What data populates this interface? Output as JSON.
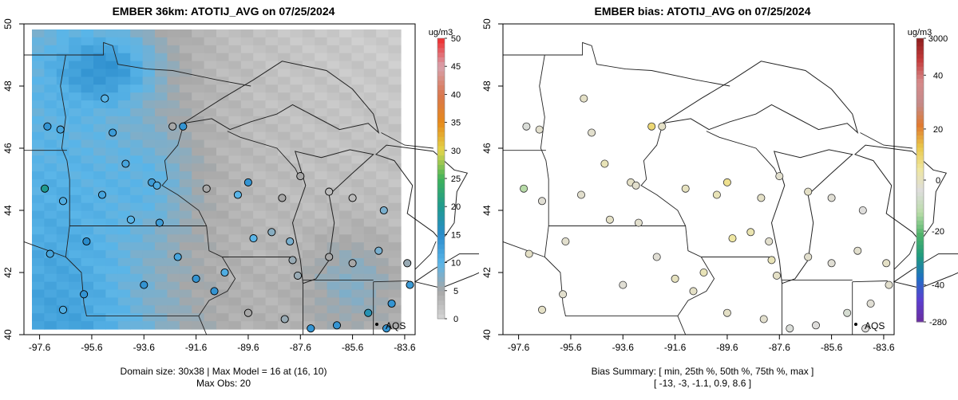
{
  "panels": [
    {
      "title": "EMBER 36km: ATOTIJ_AVG on 07/25/2024",
      "x_ticks": [
        "-97.6",
        "-95.6",
        "-93.6",
        "-91.6",
        "-89.6",
        "-87.6",
        "-85.6",
        "-83.6"
      ],
      "y_ticks": [
        "40",
        "42",
        "44",
        "46",
        "48",
        "50"
      ],
      "colorbar": {
        "unit": "ug/m3",
        "ticks": [
          "0",
          "5",
          "10",
          "15",
          "20",
          "25",
          "30",
          "35",
          "40",
          "45",
          "50"
        ],
        "colors": [
          "#d6d6d6",
          "#a7a7a7",
          "#5ab5e8",
          "#2a8ccc",
          "#1f9a8e",
          "#3fb25a",
          "#e3d54a",
          "#e68a1a",
          "#d9764f",
          "#d8a2ad",
          "#ef2a2a"
        ]
      },
      "annotation": "AQS",
      "footer_line1": "Domain size: 30x38 | Max Model = 16 at (16, 10)",
      "footer_line2": "Max Obs: 20"
    },
    {
      "title": "EMBER bias: ATOTIJ_AVG on 07/25/2024",
      "x_ticks": [
        "-97.6",
        "-95.6",
        "-93.6",
        "-91.6",
        "-89.6",
        "-87.6",
        "-85.6",
        "-83.6"
      ],
      "y_ticks": [
        "40",
        "42",
        "44",
        "46",
        "48",
        "50"
      ],
      "colorbar": {
        "unit": "ug/m3",
        "labels": [
          "3000",
          "40",
          "20",
          "0",
          "-20",
          "-40",
          "-280"
        ],
        "colors": [
          "#8c1d1d",
          "#c43b3b",
          "#d68a8a",
          "#c48a8a",
          "#e07a30",
          "#e9c84a",
          "#efe6a0",
          "#dddddd",
          "#b9dca8",
          "#4fb36a",
          "#1f9a7e",
          "#1f6fc4",
          "#5b3fd0",
          "#6a2d9e"
        ]
      },
      "annotation": "AQS",
      "footer_line1": "Bias Summary: [ min, 25th %, 50th %, 75th %, max ]",
      "footer_line2": "[ -13,   -3,   -1.1,   0.9,   8.6 ]"
    }
  ],
  "chart_data": [
    {
      "type": "heatmap",
      "title": "EMBER 36km: ATOTIJ_AVG on 07/25/2024",
      "xlabel": "",
      "ylabel": "",
      "xlim": [
        -98.2,
        -83.2
      ],
      "ylim": [
        40.0,
        50.0
      ],
      "colorbar_range": [
        0,
        50
      ],
      "model_max": 16,
      "obs_max": 20,
      "domain_size": "30x38",
      "sites": [
        {
          "lon": -97.3,
          "lat": 46.7,
          "value": 14
        },
        {
          "lon": -96.8,
          "lat": 46.6,
          "value": 12
        },
        {
          "lon": -95.1,
          "lat": 47.6,
          "value": 10
        },
        {
          "lon": -94.8,
          "lat": 46.5,
          "value": 13
        },
        {
          "lon": -94.3,
          "lat": 45.5,
          "value": 12
        },
        {
          "lon": -93.3,
          "lat": 44.9,
          "value": 13
        },
        {
          "lon": -93.1,
          "lat": 44.8,
          "value": 11
        },
        {
          "lon": -92.5,
          "lat": 46.7,
          "value": 5
        },
        {
          "lon": -92.1,
          "lat": 46.7,
          "value": 14
        },
        {
          "lon": -97.4,
          "lat": 44.7,
          "value": 20
        },
        {
          "lon": -96.7,
          "lat": 44.3,
          "value": 11
        },
        {
          "lon": -95.2,
          "lat": 44.5,
          "value": 12
        },
        {
          "lon": -94.1,
          "lat": 43.7,
          "value": 10
        },
        {
          "lon": -93.0,
          "lat": 43.6,
          "value": 13
        },
        {
          "lon": -91.2,
          "lat": 44.7,
          "value": 5
        },
        {
          "lon": -90.0,
          "lat": 44.5,
          "value": 10
        },
        {
          "lon": -89.6,
          "lat": 44.9,
          "value": 14
        },
        {
          "lon": -88.3,
          "lat": 44.4,
          "value": 5
        },
        {
          "lon": -87.6,
          "lat": 45.1,
          "value": 5
        },
        {
          "lon": -86.5,
          "lat": 44.6,
          "value": 3
        },
        {
          "lon": -85.6,
          "lat": 44.4,
          "value": 3
        },
        {
          "lon": -84.4,
          "lat": 44.0,
          "value": 8
        },
        {
          "lon": -89.4,
          "lat": 43.1,
          "value": 10
        },
        {
          "lon": -88.0,
          "lat": 43.0,
          "value": 8
        },
        {
          "lon": -87.9,
          "lat": 42.4,
          "value": 6
        },
        {
          "lon": -87.7,
          "lat": 41.9,
          "value": 6
        },
        {
          "lon": -86.5,
          "lat": 42.5,
          "value": 5
        },
        {
          "lon": -85.6,
          "lat": 42.3,
          "value": 5
        },
        {
          "lon": -84.6,
          "lat": 42.7,
          "value": 8
        },
        {
          "lon": -83.5,
          "lat": 42.3,
          "value": 6
        },
        {
          "lon": -83.4,
          "lat": 41.6,
          "value": 13
        },
        {
          "lon": -84.1,
          "lat": 41.0,
          "value": 14
        },
        {
          "lon": -85.0,
          "lat": 40.7,
          "value": 17
        },
        {
          "lon": -86.2,
          "lat": 40.3,
          "value": 14
        },
        {
          "lon": -87.2,
          "lat": 40.2,
          "value": 14
        },
        {
          "lon": -88.2,
          "lat": 40.5,
          "value": 6
        },
        {
          "lon": -89.6,
          "lat": 40.7,
          "value": 5
        },
        {
          "lon": -90.9,
          "lat": 41.4,
          "value": 14
        },
        {
          "lon": -91.6,
          "lat": 41.8,
          "value": 14
        },
        {
          "lon": -93.6,
          "lat": 41.6,
          "value": 14
        },
        {
          "lon": -95.9,
          "lat": 41.3,
          "value": 14
        },
        {
          "lon": -96.7,
          "lat": 40.8,
          "value": 11
        },
        {
          "lon": -97.2,
          "lat": 42.6,
          "value": 12
        },
        {
          "lon": -95.8,
          "lat": 43.0,
          "value": 15
        },
        {
          "lon": -92.3,
          "lat": 42.5,
          "value": 12
        },
        {
          "lon": -90.5,
          "lat": 42.0,
          "value": 11
        },
        {
          "lon": -84.3,
          "lat": 40.2,
          "value": 14
        },
        {
          "lon": -88.7,
          "lat": 43.3,
          "value": 7
        }
      ]
    },
    {
      "type": "scatter",
      "title": "EMBER bias: ATOTIJ_AVG on 07/25/2024",
      "xlabel": "",
      "ylabel": "",
      "xlim": [
        -98.2,
        -83.2
      ],
      "ylim": [
        40.0,
        50.0
      ],
      "colorbar_labels": [
        "3000",
        "40",
        "20",
        "0",
        "-20",
        "-40",
        "-280"
      ],
      "bias_summary": {
        "min": -13,
        "p25": -3,
        "p50": -1.1,
        "p75": 0.9,
        "max": 8.6
      },
      "sites": [
        {
          "lon": -97.3,
          "lat": 46.7,
          "value": -5
        },
        {
          "lon": -96.8,
          "lat": 46.6,
          "value": -2
        },
        {
          "lon": -95.1,
          "lat": 47.6,
          "value": -1
        },
        {
          "lon": -94.8,
          "lat": 46.5,
          "value": -2
        },
        {
          "lon": -94.3,
          "lat": 45.5,
          "value": 1
        },
        {
          "lon": -93.3,
          "lat": 44.9,
          "value": -1
        },
        {
          "lon": -93.1,
          "lat": 44.8,
          "value": -2
        },
        {
          "lon": -92.5,
          "lat": 46.7,
          "value": 8.6
        },
        {
          "lon": -92.1,
          "lat": 46.7,
          "value": -1
        },
        {
          "lon": -97.4,
          "lat": 44.7,
          "value": -13
        },
        {
          "lon": -96.7,
          "lat": 44.3,
          "value": -3
        },
        {
          "lon": -95.2,
          "lat": 44.5,
          "value": -2
        },
        {
          "lon": -94.1,
          "lat": 43.7,
          "value": -1
        },
        {
          "lon": -93.0,
          "lat": 43.6,
          "value": -2
        },
        {
          "lon": -91.2,
          "lat": 44.7,
          "value": 0
        },
        {
          "lon": -90.0,
          "lat": 44.5,
          "value": 1
        },
        {
          "lon": -89.6,
          "lat": 44.9,
          "value": 6
        },
        {
          "lon": -88.3,
          "lat": 44.4,
          "value": -1
        },
        {
          "lon": -87.6,
          "lat": 45.1,
          "value": -2
        },
        {
          "lon": -86.5,
          "lat": 44.6,
          "value": -1
        },
        {
          "lon": -85.6,
          "lat": 44.4,
          "value": -3
        },
        {
          "lon": -84.4,
          "lat": 44.0,
          "value": -4
        },
        {
          "lon": -89.4,
          "lat": 43.1,
          "value": 4
        },
        {
          "lon": -88.0,
          "lat": 43.0,
          "value": -2
        },
        {
          "lon": -87.9,
          "lat": 42.4,
          "value": 1
        },
        {
          "lon": -87.7,
          "lat": 41.9,
          "value": -1
        },
        {
          "lon": -86.5,
          "lat": 42.5,
          "value": -2
        },
        {
          "lon": -85.6,
          "lat": 42.3,
          "value": -3
        },
        {
          "lon": -84.6,
          "lat": 42.7,
          "value": -2
        },
        {
          "lon": -83.5,
          "lat": 42.3,
          "value": -1
        },
        {
          "lon": -83.4,
          "lat": 41.6,
          "value": -2
        },
        {
          "lon": -84.1,
          "lat": 41.0,
          "value": -3
        },
        {
          "lon": -85.0,
          "lat": 40.7,
          "value": -6
        },
        {
          "lon": -86.2,
          "lat": 40.3,
          "value": -4
        },
        {
          "lon": -87.2,
          "lat": 40.2,
          "value": -5
        },
        {
          "lon": -88.2,
          "lat": 40.5,
          "value": -2
        },
        {
          "lon": -89.6,
          "lat": 40.7,
          "value": -1
        },
        {
          "lon": -90.9,
          "lat": 41.4,
          "value": -1
        },
        {
          "lon": -91.6,
          "lat": 41.8,
          "value": 0
        },
        {
          "lon": -93.6,
          "lat": 41.6,
          "value": -3
        },
        {
          "lon": -95.9,
          "lat": 41.3,
          "value": -2
        },
        {
          "lon": -96.7,
          "lat": 40.8,
          "value": -1
        },
        {
          "lon": -97.2,
          "lat": 42.6,
          "value": -1
        },
        {
          "lon": -95.8,
          "lat": 43.0,
          "value": -2
        },
        {
          "lon": -92.3,
          "lat": 42.5,
          "value": -3
        },
        {
          "lon": -90.5,
          "lat": 42.0,
          "value": 1
        },
        {
          "lon": -84.3,
          "lat": 40.2,
          "value": -4
        },
        {
          "lon": -88.7,
          "lat": 43.3,
          "value": 2
        }
      ]
    }
  ]
}
